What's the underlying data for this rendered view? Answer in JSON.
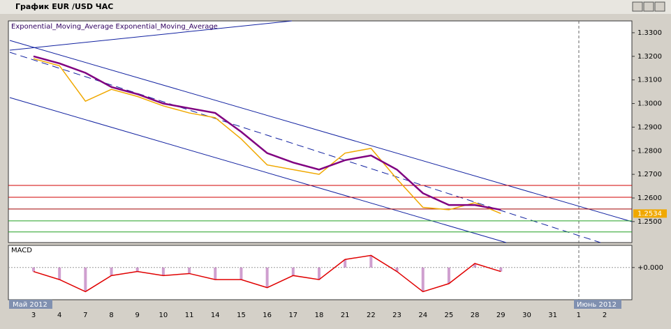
{
  "window": {
    "title": "График EUR /USD ЧАС",
    "months": [
      "Май 2012",
      "Июнь 2012"
    ]
  },
  "chart_data": [
    {
      "type": "line",
      "legend_text": "Exponential_Moving_Average Exponential_Moving_Average",
      "categories": [
        "3",
        "4",
        "7",
        "8",
        "9",
        "10",
        "11",
        "14",
        "15",
        "16",
        "17",
        "18",
        "21",
        "22",
        "23",
        "24",
        "25",
        "28",
        "29",
        "30",
        "31",
        "1",
        "2"
      ],
      "series": [
        {
          "name": "EUR/USD",
          "color": "#f0a800",
          "values": [
            1.319,
            1.316,
            1.301,
            1.306,
            1.303,
            1.299,
            1.296,
            1.294,
            1.285,
            1.274,
            1.272,
            1.27,
            1.279,
            1.281,
            1.268,
            1.256,
            1.255,
            1.258,
            1.2534,
            null,
            null,
            null,
            null
          ]
        },
        {
          "name": "Exponential_Moving_Average",
          "color": "#800080",
          "values": [
            1.32,
            1.317,
            1.313,
            1.307,
            1.304,
            1.3,
            1.298,
            1.296,
            1.288,
            1.279,
            1.275,
            1.272,
            1.276,
            1.278,
            1.272,
            1.262,
            1.257,
            1.257,
            1.255,
            null,
            null,
            null,
            null
          ]
        }
      ],
      "ylim": [
        1.2411,
        1.335
      ],
      "yticks": [
        {
          "value": 1.33,
          "label": "1.3300"
        },
        {
          "value": 1.32,
          "label": "1.3200"
        },
        {
          "value": 1.31,
          "label": "1.3100"
        },
        {
          "value": 1.3,
          "label": "1.3000"
        },
        {
          "value": 1.29,
          "label": "1.2900"
        },
        {
          "value": 1.28,
          "label": "1.2800"
        },
        {
          "value": 1.27,
          "label": "1.2700"
        },
        {
          "value": 1.26,
          "label": "1.2600"
        },
        {
          "value": 1.25,
          "label": "1.2500"
        }
      ],
      "levels": [
        {
          "value": 1.2653,
          "color": "#d00000"
        },
        {
          "value": 1.2603,
          "color": "#d00000"
        },
        {
          "value": 1.2553,
          "color": "#a00000"
        },
        {
          "value": 1.2503,
          "color": "#20a020"
        },
        {
          "value": 1.2456,
          "color": "#20a020"
        }
      ],
      "last_price": 1.2534
    },
    {
      "type": "line",
      "title": "MACD",
      "series": [
        {
          "name": "MACD",
          "color": "#e00000",
          "values": [
            -0.001,
            -0.003,
            -0.006,
            -0.002,
            -0.001,
            -0.002,
            -0.0015,
            -0.003,
            -0.003,
            -0.005,
            -0.002,
            -0.003,
            0.002,
            0.003,
            -0.001,
            -0.006,
            -0.004,
            0.001,
            -0.001,
            null,
            null,
            null,
            null
          ]
        }
      ],
      "ylim": [
        -0.008,
        0.0055
      ],
      "yticks": [
        {
          "value": 0,
          "label": "+0.000"
        }
      ]
    }
  ]
}
